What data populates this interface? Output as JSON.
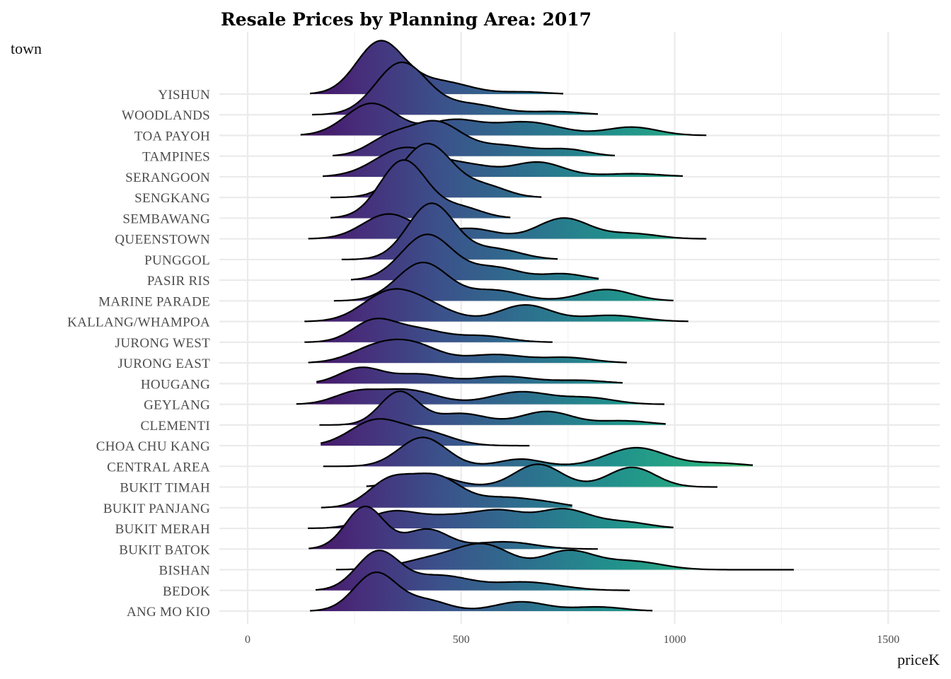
{
  "chart_data": {
    "type": "ridgeline",
    "title": "Resale Prices by Planning Area: 2017",
    "xlabel": "priceK",
    "ylabel": "town",
    "xlim": [
      -65,
      1620
    ],
    "x_ticks": [
      0,
      500,
      1000,
      1500
    ],
    "x_tick_labels": [
      "0",
      "500",
      "1000",
      "1500"
    ],
    "grid": true,
    "fill_scale": "viridis by priceK",
    "colors": {
      "low": "#440154",
      "mid": "#21918c",
      "high": "#5ec962",
      "line": "#000000",
      "grid": "#ebebeb"
    },
    "ridge_height_unit": "rows",
    "towns": [
      {
        "name": "ANG MO KIO",
        "min": 146,
        "max": 948,
        "components": [
          [
            300,
            50,
            1.85
          ],
          [
            420,
            50,
            0.5
          ],
          [
            640,
            60,
            0.45
          ],
          [
            820,
            60,
            0.2
          ]
        ]
      },
      {
        "name": "BEDOK",
        "min": 159,
        "max": 895,
        "components": [
          [
            305,
            50,
            1.85
          ],
          [
            450,
            70,
            0.7
          ],
          [
            650,
            80,
            0.4
          ]
        ]
      },
      {
        "name": "BISHAN",
        "min": 207,
        "max": 1279,
        "components": [
          [
            450,
            80,
            0.6
          ],
          [
            560,
            60,
            1.0
          ],
          [
            750,
            60,
            0.9
          ],
          [
            900,
            70,
            0.4
          ]
        ]
      },
      {
        "name": "BUKIT BATOK",
        "min": 143,
        "max": 820,
        "components": [
          [
            275,
            45,
            2.05
          ],
          [
            420,
            50,
            0.95
          ],
          [
            600,
            70,
            0.35
          ]
        ]
      },
      {
        "name": "BUKIT MERAH",
        "min": 141,
        "max": 997,
        "components": [
          [
            340,
            60,
            0.8
          ],
          [
            470,
            60,
            0.5
          ],
          [
            590,
            60,
            0.8
          ],
          [
            740,
            60,
            0.9
          ],
          [
            880,
            60,
            0.3
          ]
        ]
      },
      {
        "name": "BUKIT PANJANG",
        "min": 172,
        "max": 760,
        "components": [
          [
            330,
            50,
            1.2
          ],
          [
            440,
            60,
            1.5
          ],
          [
            600,
            60,
            0.45
          ],
          [
            700,
            50,
            0.2
          ]
        ]
      },
      {
        "name": "BUKIT TIMAH",
        "min": 278,
        "max": 1100,
        "components": [
          [
            420,
            60,
            0.6
          ],
          [
            680,
            55,
            1.1
          ],
          [
            900,
            55,
            0.95
          ]
        ]
      },
      {
        "name": "CENTRAL AREA",
        "min": 177,
        "max": 1183,
        "components": [
          [
            410,
            55,
            1.4
          ],
          [
            640,
            50,
            0.35
          ],
          [
            910,
            70,
            0.9
          ],
          [
            1100,
            60,
            0.15
          ]
        ]
      },
      {
        "name": "CHOA CHU KANG",
        "min": 171,
        "max": 660,
        "components": [
          [
            300,
            60,
            1.2
          ],
          [
            420,
            60,
            0.6
          ]
        ]
      },
      {
        "name": "CLEMENTI",
        "min": 168,
        "max": 979,
        "components": [
          [
            355,
            45,
            1.6
          ],
          [
            500,
            60,
            0.55
          ],
          [
            700,
            60,
            0.65
          ],
          [
            880,
            60,
            0.2
          ]
        ]
      },
      {
        "name": "GEYLANG",
        "min": 114,
        "max": 976,
        "components": [
          [
            250,
            50,
            0.5
          ],
          [
            370,
            70,
            0.7
          ],
          [
            640,
            70,
            0.6
          ],
          [
            800,
            60,
            0.3
          ]
        ]
      },
      {
        "name": "HOUGANG",
        "min": 161,
        "max": 878,
        "components": [
          [
            265,
            50,
            0.75
          ],
          [
            400,
            60,
            0.45
          ],
          [
            600,
            70,
            0.35
          ],
          [
            780,
            60,
            0.15
          ]
        ]
      },
      {
        "name": "JURONG EAST",
        "min": 142,
        "max": 888,
        "components": [
          [
            300,
            60,
            0.7
          ],
          [
            390,
            60,
            0.8
          ],
          [
            580,
            70,
            0.4
          ],
          [
            750,
            60,
            0.25
          ]
        ]
      },
      {
        "name": "JURONG WEST",
        "min": 133,
        "max": 714,
        "components": [
          [
            295,
            50,
            1.0
          ],
          [
            400,
            60,
            0.6
          ],
          [
            550,
            60,
            0.3
          ]
        ]
      },
      {
        "name": "KALLANG/WHAMPOA",
        "min": 133,
        "max": 1032,
        "components": [
          [
            320,
            60,
            1.0
          ],
          [
            400,
            70,
            0.9
          ],
          [
            650,
            60,
            0.8
          ],
          [
            850,
            70,
            0.3
          ]
        ]
      },
      {
        "name": "MARINE PARADE",
        "min": 202,
        "max": 997,
        "components": [
          [
            410,
            60,
            1.85
          ],
          [
            580,
            60,
            0.5
          ],
          [
            840,
            60,
            0.55
          ]
        ]
      },
      {
        "name": "PASIR RIS",
        "min": 242,
        "max": 822,
        "components": [
          [
            420,
            60,
            2.2
          ],
          [
            580,
            60,
            0.6
          ],
          [
            740,
            50,
            0.3
          ]
        ]
      },
      {
        "name": "PUNGGOL",
        "min": 220,
        "max": 726,
        "components": [
          [
            430,
            55,
            2.7
          ],
          [
            580,
            60,
            0.5
          ]
        ]
      },
      {
        "name": "QUEENSTOWN",
        "min": 142,
        "max": 1074,
        "components": [
          [
            330,
            60,
            1.2
          ],
          [
            520,
            60,
            0.5
          ],
          [
            740,
            60,
            1.0
          ],
          [
            900,
            60,
            0.25
          ]
        ]
      },
      {
        "name": "SEMBAWANG",
        "min": 194,
        "max": 615,
        "components": [
          [
            365,
            55,
            2.8
          ],
          [
            500,
            50,
            0.5
          ]
        ]
      },
      {
        "name": "SENGKANG",
        "min": 194,
        "max": 688,
        "components": [
          [
            420,
            60,
            2.6
          ],
          [
            560,
            50,
            0.5
          ]
        ]
      },
      {
        "name": "SERANGOON",
        "min": 176,
        "max": 1019,
        "components": [
          [
            370,
            70,
            1.4
          ],
          [
            520,
            60,
            0.5
          ],
          [
            680,
            60,
            0.7
          ],
          [
            900,
            70,
            0.15
          ]
        ]
      },
      {
        "name": "TAMPINES",
        "min": 199,
        "max": 860,
        "components": [
          [
            330,
            50,
            0.8
          ],
          [
            440,
            60,
            1.6
          ],
          [
            600,
            70,
            0.5
          ],
          [
            750,
            50,
            0.3
          ]
        ]
      },
      {
        "name": "TOA PAYOH",
        "min": 124,
        "max": 1074,
        "components": [
          [
            290,
            60,
            1.55
          ],
          [
            480,
            60,
            0.7
          ],
          [
            650,
            80,
            0.65
          ],
          [
            900,
            60,
            0.4
          ]
        ]
      },
      {
        "name": "WOODLANDS",
        "min": 151,
        "max": 820,
        "components": [
          [
            360,
            60,
            2.5
          ],
          [
            520,
            70,
            0.5
          ],
          [
            720,
            60,
            0.15
          ]
        ]
      },
      {
        "name": "YISHUN",
        "min": 146,
        "max": 739,
        "components": [
          [
            310,
            55,
            2.5
          ],
          [
            450,
            70,
            0.6
          ],
          [
            650,
            50,
            0.1
          ]
        ]
      }
    ]
  }
}
